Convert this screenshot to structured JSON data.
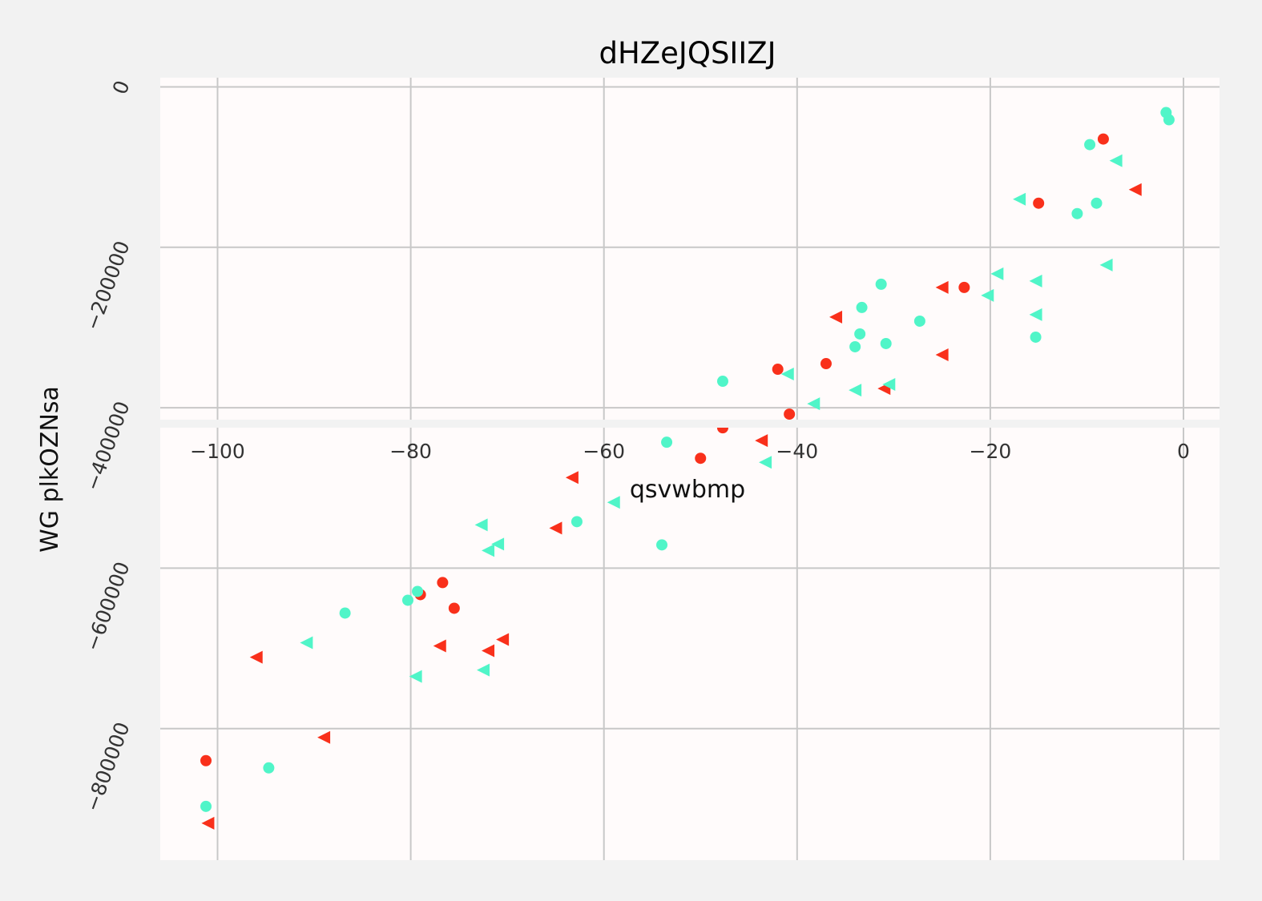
{
  "chart_data": {
    "type": "scatter",
    "title": "dHZeJQSIIZJ",
    "xlabel": "qsvwbmp",
    "ylabel": "WG plkOZNsa",
    "xlim": [
      -106,
      2
    ],
    "ylim": [
      -960000,
      12000
    ],
    "x_ticks": [
      {
        "value": -100,
        "label": "−100"
      },
      {
        "value": -80,
        "label": "−80"
      },
      {
        "value": -60,
        "label": "−60"
      },
      {
        "value": -40,
        "label": "−40"
      },
      {
        "value": -20,
        "label": "−20"
      },
      {
        "value": 0,
        "label": "0"
      }
    ],
    "y_ticks": [
      {
        "value": 0,
        "label": "0"
      },
      {
        "value": -200000,
        "label": "−200000"
      },
      {
        "value": -400000,
        "label": "−400000"
      },
      {
        "value": -600000,
        "label": "−600000"
      },
      {
        "value": -800000,
        "label": "−800000"
      }
    ],
    "grid": true,
    "colors": {
      "red": "#f9301b",
      "cyan": "#50f5c8",
      "plot_bg": "#fffbfb",
      "grid": "#c8c8c8"
    },
    "series": [
      {
        "color": "#f9301b",
        "marker": "circle",
        "points": [
          [
            -8.3,
            -65000
          ],
          [
            -15,
            -145000
          ],
          [
            -22.7,
            -250000
          ],
          [
            -37,
            -345000
          ],
          [
            -42,
            -352000
          ],
          [
            -40.8,
            -408000
          ],
          [
            -47.7,
            -425000
          ],
          [
            -50,
            -463000
          ],
          [
            -76.7,
            -618000
          ],
          [
            -79,
            -633000
          ],
          [
            -75.5,
            -650000
          ],
          [
            -101.2,
            -840000
          ]
        ]
      },
      {
        "color": "#50f5c8",
        "marker": "circle",
        "points": [
          [
            -1.8,
            -32000
          ],
          [
            -1.5,
            -41000
          ],
          [
            -9.7,
            -72000
          ],
          [
            -9,
            -145000
          ],
          [
            -11,
            -158000
          ],
          [
            -31.3,
            -246000
          ],
          [
            -33.3,
            -275000
          ],
          [
            -27.3,
            -292000
          ],
          [
            -33.5,
            -308000
          ],
          [
            -34,
            -324000
          ],
          [
            -30.8,
            -320000
          ],
          [
            -15.3,
            -312000
          ],
          [
            -47.7,
            -367000
          ],
          [
            -53.5,
            -443000
          ],
          [
            -62.8,
            -542000
          ],
          [
            -54,
            -571000
          ],
          [
            -79.3,
            -629000
          ],
          [
            -80.3,
            -640000
          ],
          [
            -86.8,
            -656000
          ],
          [
            -94.7,
            -849000
          ],
          [
            -101.2,
            -897000
          ]
        ]
      },
      {
        "color": "#f9301b",
        "marker": "triangle-left",
        "points": [
          [
            -5,
            -128000
          ],
          [
            -25,
            -250000
          ],
          [
            -36,
            -287000
          ],
          [
            -25,
            -334000
          ],
          [
            -31,
            -376000
          ],
          [
            -43.7,
            -441000
          ],
          [
            -63.3,
            -487000
          ],
          [
            -65,
            -550000
          ],
          [
            -70.5,
            -689000
          ],
          [
            -72,
            -703000
          ],
          [
            -77,
            -697000
          ],
          [
            -96,
            -711000
          ],
          [
            -89,
            -811000
          ],
          [
            -101,
            -918000
          ]
        ]
      },
      {
        "color": "#50f5c8",
        "marker": "triangle-left",
        "points": [
          [
            -7,
            -92000
          ],
          [
            -17,
            -140000
          ],
          [
            -8,
            -222000
          ],
          [
            -19.3,
            -233000
          ],
          [
            -15.3,
            -242000
          ],
          [
            -20.3,
            -260000
          ],
          [
            -15.3,
            -284000
          ],
          [
            -41,
            -358000
          ],
          [
            -30.5,
            -371000
          ],
          [
            -34,
            -378000
          ],
          [
            -38.3,
            -395000
          ],
          [
            -43.3,
            -468000
          ],
          [
            -59,
            -518000
          ],
          [
            -72.7,
            -546000
          ],
          [
            -71,
            -570000
          ],
          [
            -72,
            -578000
          ],
          [
            -90.8,
            -693000
          ],
          [
            -72.5,
            -727000
          ],
          [
            -79.5,
            -735000
          ]
        ]
      }
    ]
  }
}
